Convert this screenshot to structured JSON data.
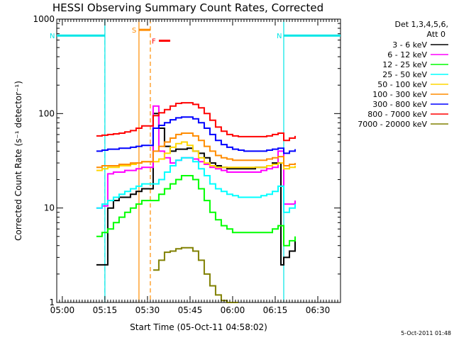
{
  "chart_data": {
    "type": "line",
    "title": "HESSI Observing Summary Count Rates, Corrected",
    "xlabel": "Start Time (05-Oct-11 04:58:02)",
    "ylabel": "Corrected Count Rate (s⁻¹ detector⁻¹)",
    "y_scale": "log",
    "ylim": [
      1,
      1000
    ],
    "xlim": [
      "04:58:02",
      "06:38:00"
    ],
    "x_ticks": [
      "05:00",
      "05:15",
      "05:30",
      "05:45",
      "06:00",
      "06:15",
      "06:30"
    ],
    "y_ticks": [
      "1",
      "10",
      "100",
      "1000"
    ],
    "grid": false,
    "legend_position": "right",
    "legend_header": [
      "Det 1,3,4,5,6,",
      "Att 0"
    ],
    "footer_date": "5-Oct-2011 01:48",
    "annotations": [
      {
        "label": "N",
        "color": "#00e6e6",
        "meaning": "night",
        "start": "04:58",
        "end": "05:15",
        "y": 670
      },
      {
        "label": "N",
        "color": "#00e6e6",
        "meaning": "night",
        "start": "06:18",
        "end": "06:38",
        "y": 670
      },
      {
        "label": "S",
        "color": "#ff8c00",
        "meaning": "SAA",
        "start": "05:27",
        "end": "05:31",
        "y": 770
      },
      {
        "label": "F",
        "color": "#ff0000",
        "meaning": "flare",
        "start": "05:34",
        "end": "05:38",
        "y": 590
      }
    ],
    "series": [
      {
        "name": "3 - 6 keV",
        "color": "#000000",
        "x": [
          "05:12",
          "05:14",
          "05:16",
          "05:18",
          "05:20",
          "05:22",
          "05:24",
          "05:26",
          "05:28",
          "05:32",
          "05:34",
          "05:36",
          "05:38",
          "05:40",
          "05:42",
          "05:44",
          "05:46",
          "05:48",
          "05:50",
          "05:52",
          "05:54",
          "05:56",
          "05:58",
          "06:00",
          "06:02",
          "06:04",
          "06:06",
          "06:08",
          "06:10",
          "06:12",
          "06:14",
          "06:16",
          "06:17",
          "06:18",
          "06:20",
          "06:22"
        ],
        "y": [
          2.5,
          2.5,
          10,
          12,
          13,
          13,
          14,
          15,
          16,
          100,
          70,
          45,
          40,
          42,
          42,
          43,
          40,
          38,
          34,
          30,
          28,
          27,
          26,
          26,
          26,
          26,
          26,
          27,
          27,
          28,
          30,
          30,
          2.5,
          3,
          3.5,
          4.5
        ]
      },
      {
        "name": "6 - 12 keV",
        "color": "#ff00ff",
        "x": [
          "05:12",
          "05:14",
          "05:16",
          "05:18",
          "05:20",
          "05:22",
          "05:24",
          "05:26",
          "05:28",
          "05:32",
          "05:34",
          "05:36",
          "05:38",
          "05:40",
          "05:42",
          "05:44",
          "05:46",
          "05:48",
          "05:50",
          "05:52",
          "05:54",
          "05:56",
          "05:58",
          "06:00",
          "06:02",
          "06:04",
          "06:06",
          "06:08",
          "06:10",
          "06:12",
          "06:14",
          "06:16",
          "06:18",
          "06:20",
          "06:22"
        ],
        "y": [
          10,
          10.5,
          23,
          24,
          24,
          25,
          25,
          26,
          27,
          120,
          40,
          34,
          30,
          32,
          34,
          34,
          33,
          31,
          29,
          27,
          26,
          25,
          24,
          24,
          24,
          24,
          24,
          24,
          25,
          26,
          27,
          40,
          11,
          11,
          12
        ]
      },
      {
        "name": "12 - 25 keV",
        "color": "#00ff00",
        "x": [
          "05:12",
          "05:14",
          "05:16",
          "05:18",
          "05:20",
          "05:22",
          "05:24",
          "05:26",
          "05:28",
          "05:32",
          "05:34",
          "05:36",
          "05:38",
          "05:40",
          "05:42",
          "05:44",
          "05:46",
          "05:48",
          "05:50",
          "05:52",
          "05:54",
          "05:56",
          "05:58",
          "06:00",
          "06:02",
          "06:04",
          "06:06",
          "06:08",
          "06:10",
          "06:12",
          "06:14",
          "06:16",
          "06:18",
          "06:20",
          "06:22"
        ],
        "y": [
          5,
          5.5,
          6,
          7,
          8,
          9,
          10,
          11,
          12,
          12,
          14,
          16,
          18,
          20,
          22,
          22,
          20,
          16,
          12,
          9,
          7.5,
          6.5,
          6,
          5.5,
          5.5,
          5.5,
          5.5,
          5.5,
          5.5,
          5.5,
          6,
          6.5,
          4,
          4.5,
          5
        ]
      },
      {
        "name": "25 - 50 keV",
        "color": "#00ffff",
        "x": [
          "05:12",
          "05:14",
          "05:16",
          "05:18",
          "05:20",
          "05:22",
          "05:24",
          "05:26",
          "05:28",
          "05:32",
          "05:34",
          "05:36",
          "05:38",
          "05:40",
          "05:42",
          "05:44",
          "05:46",
          "05:48",
          "05:50",
          "05:52",
          "05:54",
          "05:56",
          "05:58",
          "06:00",
          "06:02",
          "06:04",
          "06:06",
          "06:08",
          "06:10",
          "06:12",
          "06:14",
          "06:16",
          "06:18",
          "06:20",
          "06:22"
        ],
        "y": [
          10,
          11,
          12,
          13,
          14,
          15,
          16,
          17,
          18,
          18,
          20,
          24,
          28,
          32,
          34,
          34,
          31,
          26,
          22,
          18,
          16,
          15,
          14,
          13.5,
          13,
          13,
          13,
          13,
          13.5,
          14,
          15,
          17,
          9,
          10,
          11
        ]
      },
      {
        "name": "50 - 100 keV",
        "color": "#ffd700",
        "x": [
          "05:12",
          "05:14",
          "05:16",
          "05:18",
          "05:20",
          "05:22",
          "05:24",
          "05:26",
          "05:28",
          "05:32",
          "05:34",
          "05:36",
          "05:38",
          "05:40",
          "05:42",
          "05:44",
          "05:46",
          "05:48",
          "05:50",
          "05:52",
          "05:54",
          "05:56",
          "05:58",
          "06:00",
          "06:02",
          "06:04",
          "06:06",
          "06:08",
          "06:10",
          "06:12",
          "06:14",
          "06:16",
          "06:18",
          "06:20",
          "06:22"
        ],
        "y": [
          25,
          26,
          27,
          27,
          28,
          28,
          29,
          30,
          31,
          31,
          33,
          38,
          44,
          48,
          50,
          46,
          40,
          34,
          30,
          28,
          27,
          27,
          27,
          27,
          27,
          27,
          27,
          27,
          27,
          28,
          29,
          30,
          26,
          27,
          28
        ]
      },
      {
        "name": "100 - 300 keV",
        "color": "#ff8c00",
        "x": [
          "05:12",
          "05:14",
          "05:16",
          "05:18",
          "05:20",
          "05:22",
          "05:24",
          "05:26",
          "05:28",
          "05:32",
          "05:34",
          "05:36",
          "05:38",
          "05:40",
          "05:42",
          "05:44",
          "05:46",
          "05:48",
          "05:50",
          "05:52",
          "05:54",
          "05:56",
          "05:58",
          "06:00",
          "06:02",
          "06:04",
          "06:06",
          "06:08",
          "06:10",
          "06:12",
          "06:14",
          "06:16",
          "06:18",
          "06:20",
          "06:22"
        ],
        "y": [
          27,
          28,
          28,
          28,
          29,
          29,
          30,
          30,
          31,
          40,
          45,
          50,
          55,
          60,
          62,
          62,
          58,
          52,
          45,
          40,
          36,
          34,
          33,
          32,
          32,
          32,
          32,
          32,
          32,
          33,
          34,
          35,
          28,
          29,
          30
        ]
      },
      {
        "name": "300 - 800 keV",
        "color": "#0000ff",
        "x": [
          "05:12",
          "05:14",
          "05:16",
          "05:18",
          "05:20",
          "05:22",
          "05:24",
          "05:26",
          "05:28",
          "05:32",
          "05:34",
          "05:36",
          "05:38",
          "05:40",
          "05:42",
          "05:44",
          "05:46",
          "05:48",
          "05:50",
          "05:52",
          "05:54",
          "05:56",
          "05:58",
          "06:00",
          "06:02",
          "06:04",
          "06:06",
          "06:08",
          "06:10",
          "06:12",
          "06:14",
          "06:16",
          "06:18",
          "06:20",
          "06:22"
        ],
        "y": [
          40,
          41,
          42,
          42,
          43,
          43,
          44,
          45,
          46,
          70,
          75,
          80,
          86,
          90,
          92,
          92,
          88,
          80,
          70,
          60,
          52,
          47,
          44,
          42,
          41,
          40,
          40,
          40,
          40,
          41,
          42,
          43,
          38,
          40,
          42
        ]
      },
      {
        "name": "800 - 7000 keV",
        "color": "#ff0000",
        "x": [
          "05:12",
          "05:14",
          "05:16",
          "05:18",
          "05:20",
          "05:22",
          "05:24",
          "05:26",
          "05:28",
          "05:32",
          "05:34",
          "05:36",
          "05:38",
          "05:40",
          "05:42",
          "05:44",
          "05:46",
          "05:48",
          "05:50",
          "05:52",
          "05:54",
          "05:56",
          "05:58",
          "06:00",
          "06:02",
          "06:04",
          "06:06",
          "06:08",
          "06:10",
          "06:12",
          "06:14",
          "06:16",
          "06:18",
          "06:20",
          "06:22"
        ],
        "y": [
          58,
          59,
          60,
          61,
          62,
          64,
          66,
          70,
          74,
          95,
          102,
          110,
          120,
          128,
          130,
          130,
          125,
          115,
          100,
          85,
          72,
          65,
          60,
          58,
          57,
          57,
          57,
          57,
          57,
          58,
          60,
          62,
          52,
          55,
          58
        ]
      },
      {
        "name": "7000 - 20000 keV",
        "color": "#808000",
        "x": [
          "05:32",
          "05:34",
          "05:36",
          "05:38",
          "05:40",
          "05:42",
          "05:44",
          "05:46",
          "05:48",
          "05:50",
          "05:52",
          "05:54",
          "05:56",
          "05:58",
          "06:00",
          "06:02"
        ],
        "y": [
          2.2,
          2.8,
          3.4,
          3.5,
          3.7,
          3.8,
          3.8,
          3.5,
          2.8,
          2.0,
          1.5,
          1.2,
          1.05,
          1.0,
          1.0,
          1.0
        ]
      }
    ]
  }
}
